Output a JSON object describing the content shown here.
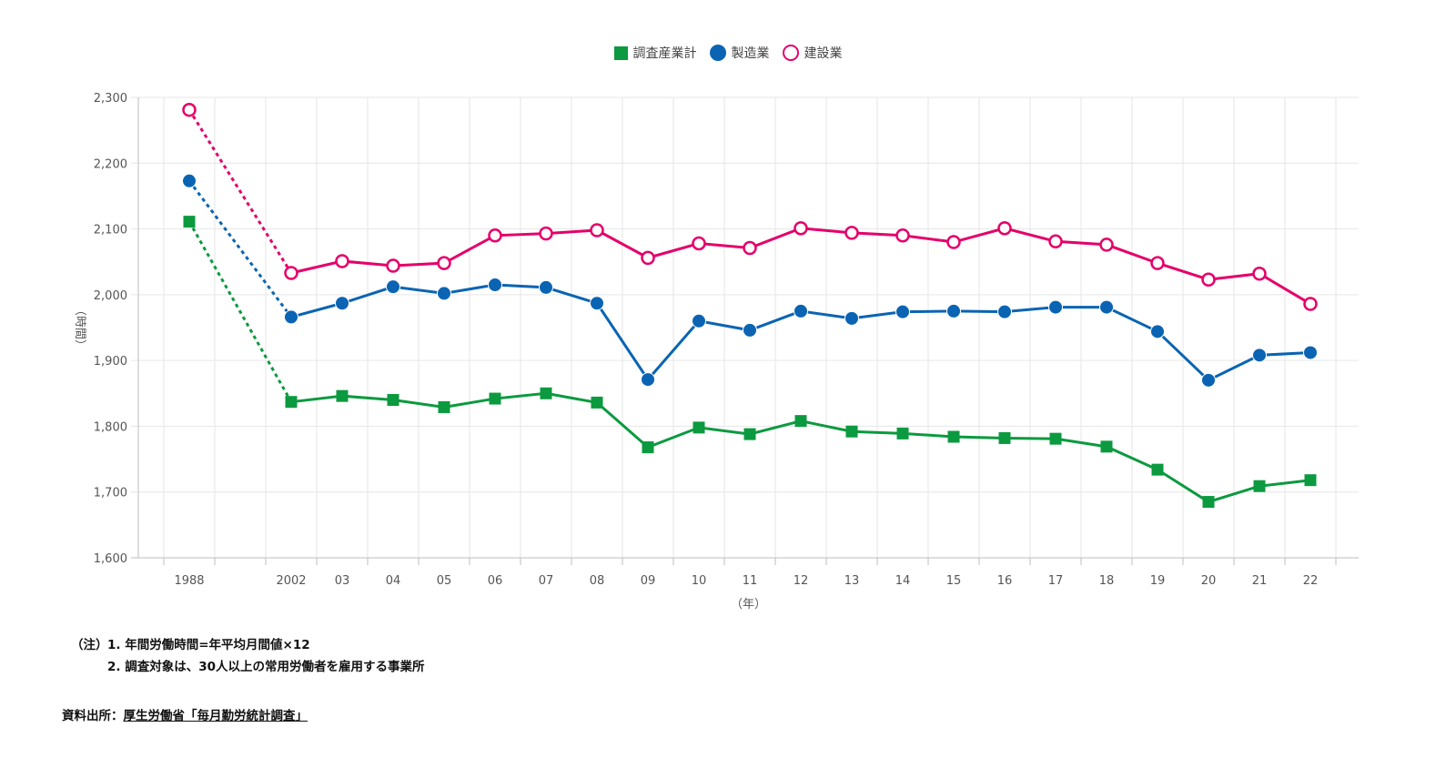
{
  "chart_data": {
    "type": "line",
    "categories": [
      "1988",
      "2002",
      "03",
      "04",
      "05",
      "06",
      "07",
      "08",
      "09",
      "10",
      "11",
      "12",
      "13",
      "14",
      "15",
      "16",
      "17",
      "18",
      "19",
      "20",
      "21",
      "22"
    ],
    "ylabel": "（時間）",
    "xlabel": "（年）",
    "ylim": [
      1600,
      2300
    ],
    "yticks": [
      "1,600",
      "1,700",
      "1,800",
      "1,900",
      "2,000",
      "2,100",
      "2,200",
      "2,300"
    ],
    "grid": true,
    "legend_position": "top-center",
    "gap_after_first": true,
    "series": [
      {
        "name": "調査産業計",
        "marker": "square",
        "color": "#0b9a3f",
        "values": [
          2111,
          1837,
          1846,
          1840,
          1829,
          1842,
          1850,
          1836,
          1768,
          1798,
          1788,
          1808,
          1792,
          1789,
          1784,
          1782,
          1781,
          1769,
          1734,
          1685,
          1709,
          1718
        ]
      },
      {
        "name": "製造業",
        "marker": "filled-circle",
        "color": "#0a64b3",
        "values": [
          2173,
          1966,
          1987,
          2012,
          2002,
          2015,
          2011,
          1987,
          1871,
          1960,
          1946,
          1975,
          1964,
          1974,
          1975,
          1974,
          1981,
          1981,
          1944,
          1870,
          1908,
          1912
        ]
      },
      {
        "name": "建設業",
        "marker": "hollow-circle",
        "color": "#e5006a",
        "values": [
          2281,
          2033,
          2051,
          2044,
          2048,
          2090,
          2093,
          2098,
          2056,
          2078,
          2071,
          2101,
          2094,
          2090,
          2080,
          2101,
          2081,
          2076,
          2048,
          2023,
          2032,
          1986
        ]
      }
    ]
  },
  "notes": {
    "prefix": "（注）",
    "items": [
      "1. 年間労働時間=年平均月間値×12",
      "2. 調査対象は、30人以上の常用労働者を雇用する事業所"
    ]
  },
  "source": {
    "label": "資料出所：",
    "link": "厚生労働省「毎月勤労統計調査」"
  }
}
